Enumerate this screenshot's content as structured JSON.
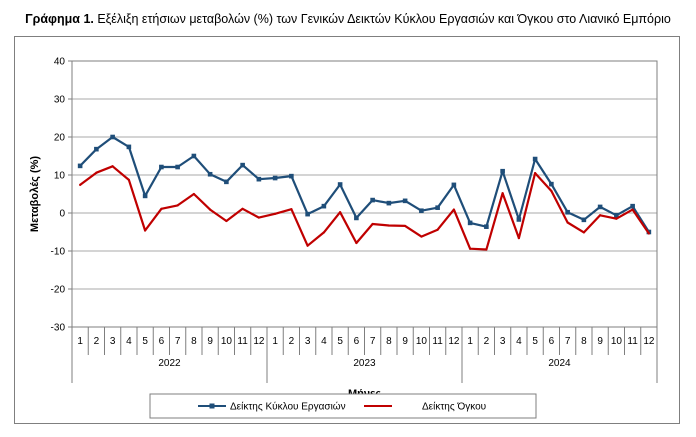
{
  "title_bold": "Γράφημα 1.",
  "title_rest": " Εξέλιξη ετήσιων μεταβολών (%) των Γενικών Δεικτών Κύκλου Εργασιών και Όγκου στο Λιανικό Εμπόριο",
  "chart_data": {
    "type": "line",
    "title": "Γράφημα 1. Εξέλιξη ετήσιων μεταβολών (%) των Γενικών Δεικτών Κύκλου Εργασιών και Όγκου στο Λιανικό Εμπόριο",
    "xlabel": "Μήνες",
    "ylabel": "Μεταβολές  (%)",
    "ylim": [
      -30,
      40
    ],
    "yticks": [
      -30,
      -20,
      -10,
      0,
      10,
      20,
      30,
      40
    ],
    "grid": true,
    "legend_position": "bottom",
    "months": [
      "1",
      "2",
      "3",
      "4",
      "5",
      "6",
      "7",
      "8",
      "9",
      "10",
      "11",
      "12",
      "1",
      "2",
      "3",
      "4",
      "5",
      "6",
      "7",
      "8",
      "9",
      "10",
      "11",
      "12",
      "1",
      "2",
      "3",
      "4",
      "5",
      "6",
      "7",
      "8",
      "9",
      "10",
      "11",
      "12"
    ],
    "years": [
      "2022",
      "2023",
      "2024"
    ],
    "series": [
      {
        "name": "Δείκτης Κύκλου Εργασιών",
        "color": "#1f4e79",
        "marker": "square",
        "values": [
          12.4,
          16.8,
          20.0,
          17.4,
          4.5,
          12.1,
          12.1,
          15.0,
          10.2,
          8.2,
          12.6,
          8.9,
          9.2,
          9.7,
          -0.3,
          1.8,
          7.5,
          -1.3,
          3.4,
          2.6,
          3.2,
          0.6,
          1.4,
          7.4,
          -2.6,
          -3.6,
          11.0,
          -1.7,
          14.2,
          7.6,
          0.2,
          -1.8,
          1.6,
          -0.6,
          1.8,
          -5.0
        ]
      },
      {
        "name": "Δείκτης Όγκου",
        "color": "#c00000",
        "marker": "none",
        "values": [
          7.4,
          10.6,
          12.3,
          8.7,
          -4.6,
          1.1,
          2.0,
          5.0,
          0.9,
          -2.1,
          1.1,
          -1.2,
          -0.2,
          1.0,
          -8.6,
          -5.1,
          0.2,
          -7.9,
          -2.9,
          -3.3,
          -3.4,
          -6.2,
          -4.4,
          0.9,
          -9.4,
          -9.6,
          5.2,
          -6.6,
          10.5,
          5.8,
          -2.5,
          -5.1,
          -0.6,
          -1.5,
          0.9,
          -5.4
        ]
      }
    ]
  }
}
